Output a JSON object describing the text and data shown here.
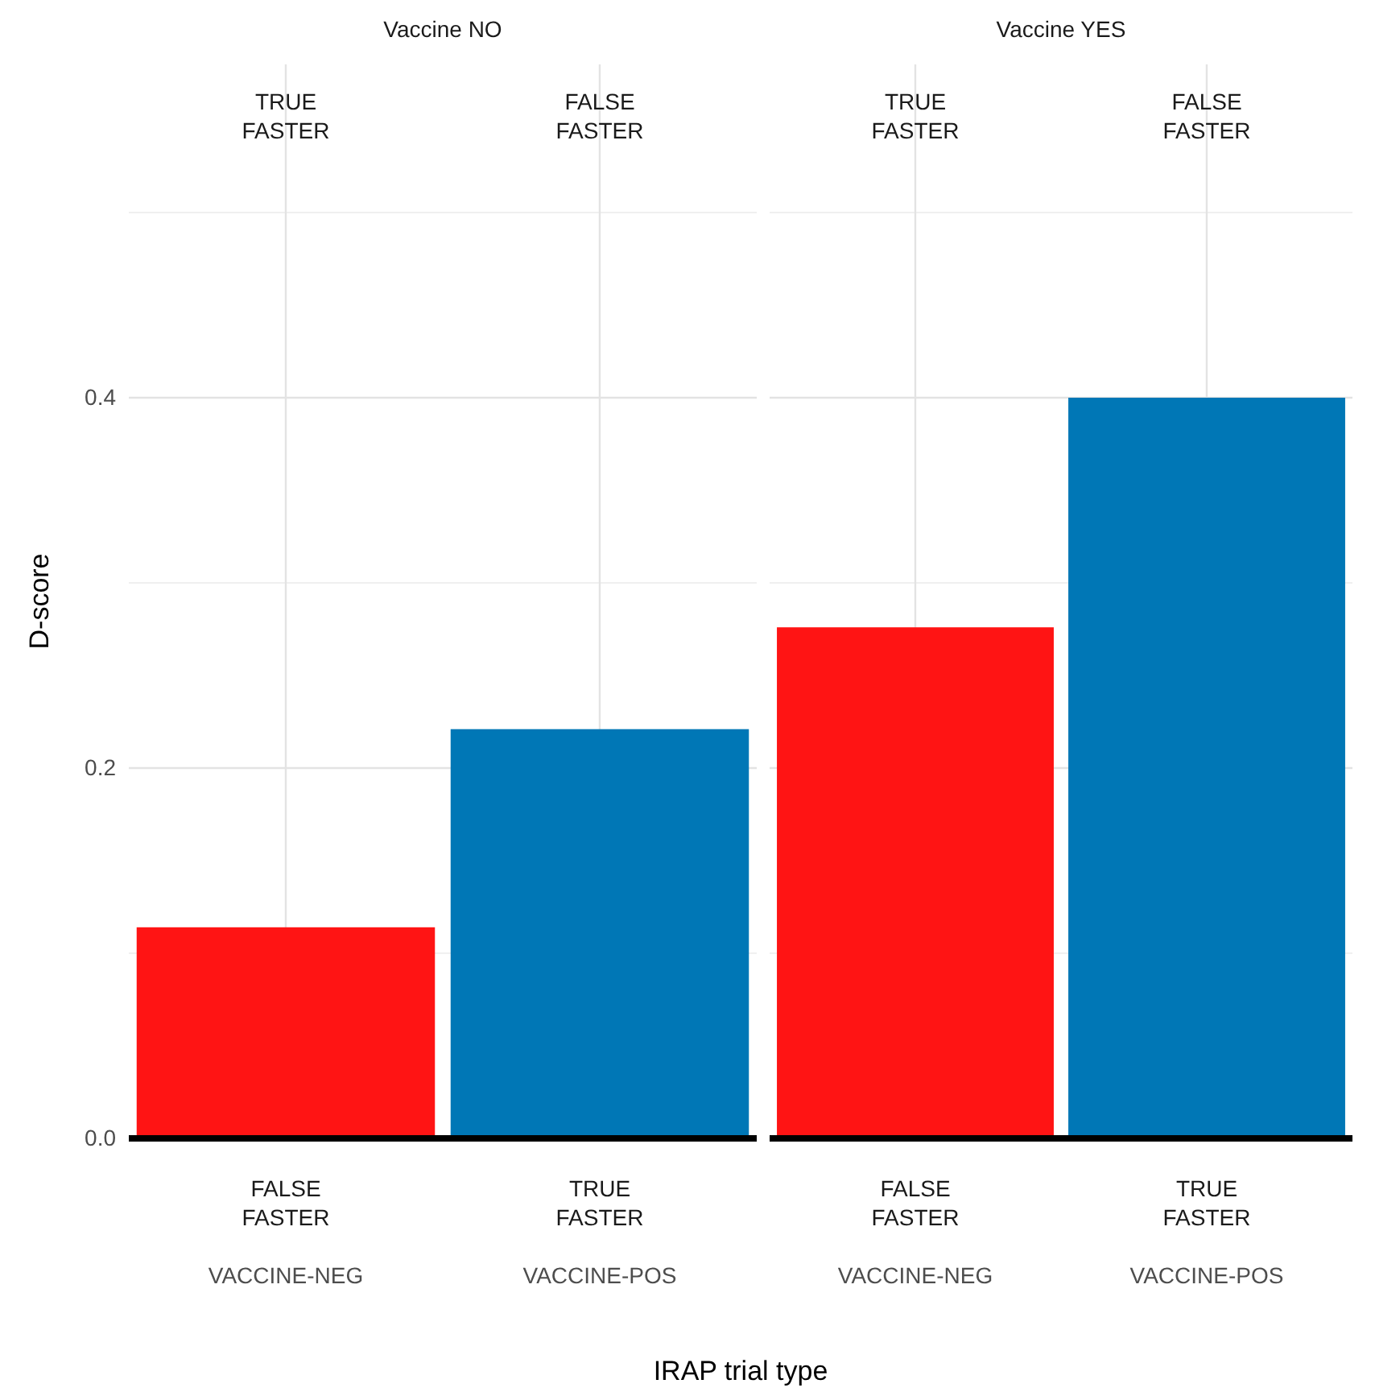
{
  "chart_data": [
    {
      "type": "bar",
      "title": "Vaccine NO",
      "categories": [
        "VACCINE-NEG",
        "VACCINE-POS"
      ],
      "values": [
        0.114,
        0.221
      ],
      "colors": [
        "#ff1414",
        "#0077b6"
      ],
      "ylim": [
        0,
        0.58
      ],
      "yticks": [
        {
          "value": 0,
          "label": "0.0"
        },
        {
          "value": 0.1,
          "label": null
        },
        {
          "value": 0.2,
          "label": "0.2"
        },
        {
          "value": 0.3,
          "label": null
        },
        {
          "value": 0.4,
          "label": "0.4"
        },
        {
          "value": 0.5,
          "label": null
        }
      ],
      "grid": true,
      "ylabel": "D-score",
      "xlabel": "IRAP trial type",
      "annotations": [
        "TRUE\nFASTER",
        "FALSE\nFASTER",
        "FALSE\nFASTER",
        "TRUE\nFASTER"
      ]
    },
    {
      "type": "bar",
      "title": "Vaccine YES",
      "categories": [
        "VACCINE-NEG",
        "VACCINE-POS"
      ],
      "values": [
        0.276,
        0.4
      ],
      "colors": [
        "#ff1414",
        "#0077b6"
      ],
      "ylim": [
        0,
        0.58
      ],
      "yticks": [
        0,
        0.1,
        0.2,
        0.3,
        0.4,
        0.5
      ],
      "grid": true,
      "tick_labels": "x",
      "annotations": [
        "TRUE\nFASTER",
        "FALSE\nFASTER",
        "FALSE\nFASTER",
        "TRUE\nFASTER"
      ]
    }
  ]
}
